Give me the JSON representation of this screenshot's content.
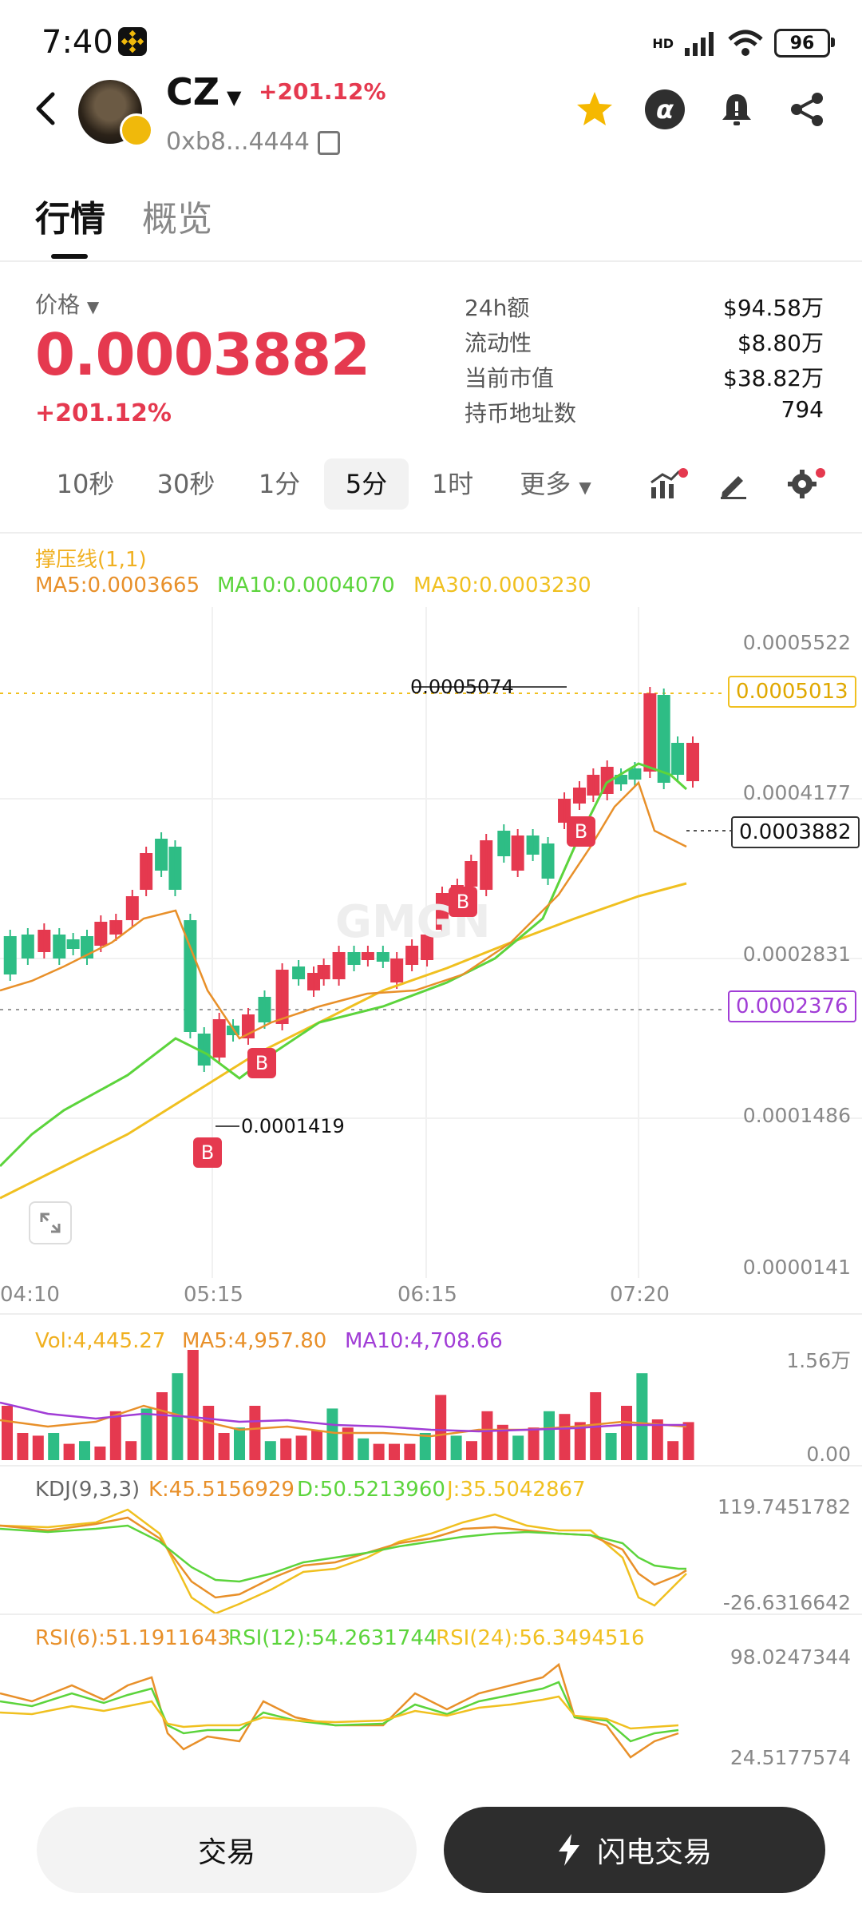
{
  "status": {
    "time": "7:40",
    "network": "HD",
    "battery": "96"
  },
  "token": {
    "name": "CZ",
    "change": "+201.12%",
    "address": "0xb8...4444"
  },
  "tabs": [
    "行情",
    "概览"
  ],
  "price": {
    "label": "价格",
    "value": "0.0003882",
    "change": "+201.12%"
  },
  "stats": [
    {
      "label": "24h额",
      "value": "$94.58万"
    },
    {
      "label": "流动性",
      "value": "$8.80万"
    },
    {
      "label": "当前市值",
      "value": "$38.82万"
    },
    {
      "label": "持币地址数",
      "value": "794"
    }
  ],
  "intervals": [
    "10秒",
    "30秒",
    "1分",
    "5分",
    "1时",
    "更多"
  ],
  "active_interval": "5分",
  "chart": {
    "overlay_label": "撑压线(1,1)",
    "ma5": "MA5:0.0003665",
    "ma10": "MA10:0.0004070",
    "ma30": "MA30:0.0003230",
    "y_axis": [
      "0.0005522",
      "0.0004177",
      "0.0002831",
      "0.0001486",
      "0.0000141"
    ],
    "resistance_tag": "0.0005013",
    "current_tag": "0.0003882",
    "support_tag": "0.0002376",
    "high_label": "0.0005074",
    "low_label": "0.0001419",
    "x_axis": [
      "04:10",
      "05:15",
      "06:15",
      "07:20"
    ],
    "buy_marker": "B"
  },
  "volume": {
    "vol": "Vol:4,445.27",
    "ma5": "MA5:4,957.80",
    "ma10": "MA10:4,708.66",
    "y_max": "1.56万",
    "y_min": "0.00"
  },
  "kdj": {
    "label": "KDJ(9,3,3)",
    "k": "K:45.5156929",
    "d": "D:50.5213960",
    "j": "J:35.5042867",
    "y_max": "119.7451782",
    "y_min": "-26.6316642"
  },
  "rsi": {
    "rsi6": "RSI(6):51.1911643",
    "rsi12": "RSI(12):54.2631744",
    "rsi24": "RSI(24):56.3494516",
    "y_max": "98.0247344",
    "y_min": "24.5177574"
  },
  "buttons": {
    "trade": "交易",
    "flash": "闪电交易"
  },
  "colors": {
    "up": "#e5394f",
    "down": "#2ebd85",
    "ma5": "#e8902a",
    "ma10": "#5cd43c",
    "ma30": "#f0c020",
    "purple": "#a13dd6"
  },
  "icons": [
    "back-icon",
    "star-icon",
    "alpha-icon",
    "bell-icon",
    "share-icon",
    "copy-icon",
    "indicator-icon",
    "draw-icon",
    "settings-icon",
    "expand-icon",
    "lightning-icon"
  ]
}
